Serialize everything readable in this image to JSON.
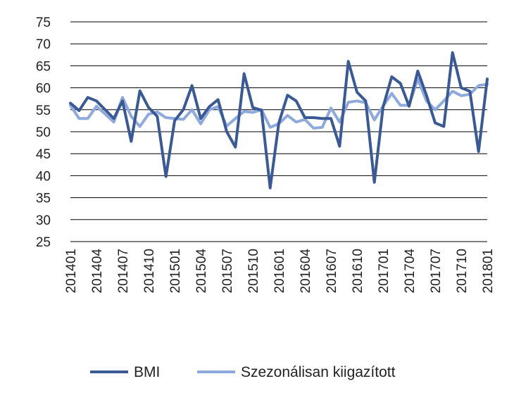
{
  "chart_data": {
    "type": "line",
    "title": "",
    "xlabel": "",
    "ylabel": "",
    "ylim": [
      25,
      75
    ],
    "yticks": [
      25,
      30,
      35,
      40,
      45,
      50,
      55,
      60,
      65,
      70,
      75
    ],
    "grid": "horizontal",
    "legend_position": "bottom",
    "x": [
      "201401",
      "201402",
      "201403",
      "201404",
      "201405",
      "201406",
      "201407",
      "201408",
      "201409",
      "201410",
      "201411",
      "201412",
      "201501",
      "201502",
      "201503",
      "201504",
      "201505",
      "201506",
      "201507",
      "201508",
      "201509",
      "201510",
      "201511",
      "201512",
      "201601",
      "201602",
      "201603",
      "201604",
      "201605",
      "201606",
      "201607",
      "201608",
      "201609",
      "201610",
      "201611",
      "201612",
      "201701",
      "201702",
      "201703",
      "201704",
      "201705",
      "201706",
      "201707",
      "201708",
      "201709",
      "201710",
      "201711",
      "201712",
      "201801"
    ],
    "x_tick_labels": [
      "201401",
      "201404",
      "201407",
      "201410",
      "201501",
      "201504",
      "201507",
      "201510",
      "201601",
      "201604",
      "201607",
      "201610",
      "201701",
      "201704",
      "201707",
      "201710",
      "201801"
    ],
    "series": [
      {
        "name": "BMI",
        "color": "#3A5A97",
        "values": [
          56.5,
          54.8,
          57.8,
          57.0,
          55.0,
          53.0,
          57.0,
          47.8,
          59.3,
          55.5,
          53.5,
          39.8,
          52.5,
          55.0,
          60.5,
          53.0,
          55.7,
          57.3,
          50.0,
          46.5,
          63.2,
          55.5,
          54.9,
          37.2,
          52.0,
          58.3,
          57.0,
          53.2,
          53.2,
          53.0,
          53.0,
          46.7,
          66.0,
          59.0,
          57.0,
          38.5,
          55.6,
          62.5,
          61.0,
          55.8,
          63.8,
          58.3,
          52.0,
          51.2,
          68.0,
          60.0,
          59.2,
          45.5,
          62.0
        ]
      },
      {
        "name": "Szezonálisan kiigazított",
        "color": "#8EA9DB",
        "values": [
          56.0,
          53.0,
          53.0,
          55.8,
          54.0,
          52.2,
          57.8,
          53.5,
          51.2,
          54.0,
          54.5,
          53.2,
          53.0,
          52.8,
          55.0,
          51.8,
          55.0,
          55.7,
          51.3,
          53.0,
          54.6,
          54.4,
          55.0,
          51.0,
          51.8,
          53.7,
          52.2,
          52.8,
          50.8,
          51.0,
          55.4,
          52.2,
          56.7,
          57.0,
          56.6,
          52.7,
          55.8,
          58.7,
          56.0,
          56.0,
          62.0,
          57.0,
          55.0,
          57.0,
          59.2,
          58.2,
          58.5,
          60.5,
          60.8
        ]
      }
    ]
  }
}
